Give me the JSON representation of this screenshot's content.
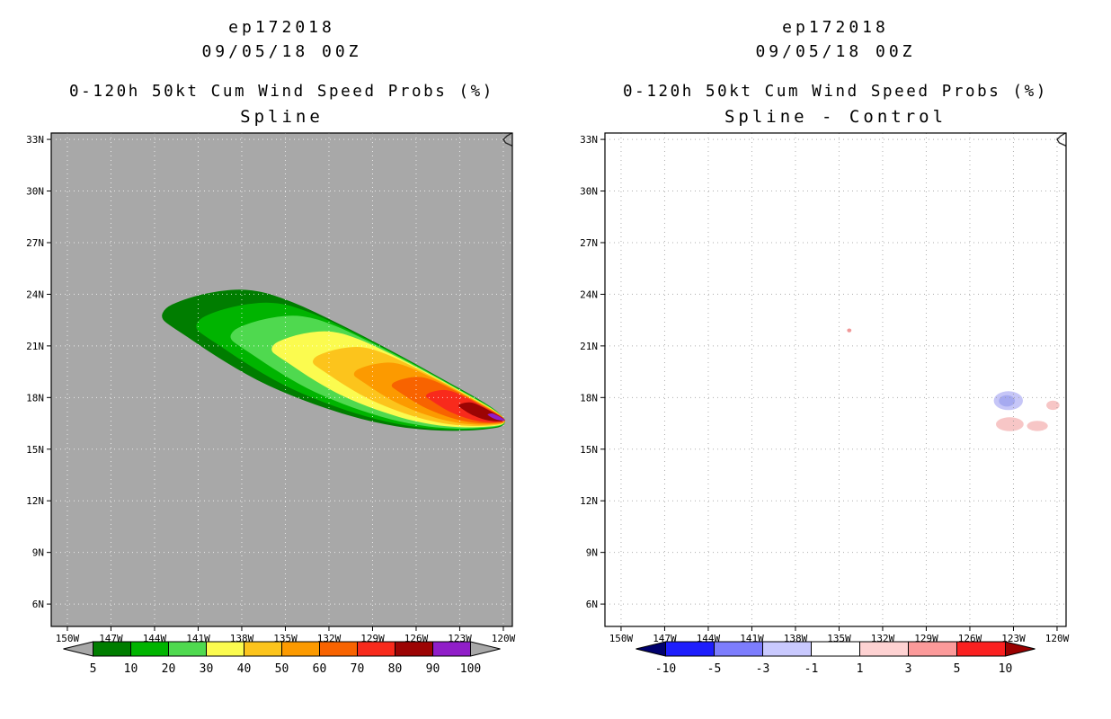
{
  "page": {
    "bg": "#ffffff"
  },
  "chart_data": [
    {
      "id": "spline",
      "type": "heatmap",
      "subtype": "filled_contour_map",
      "title_lines": [
        "ep172018",
        "09/05/18 00Z"
      ],
      "subtitle_lines": [
        "0-120h 50kt Cum Wind Speed Probs (%)",
        "Spline"
      ],
      "units": "%",
      "x_axis": {
        "range": [
          -151.11,
          -119.38
        ],
        "ticks": [
          -150,
          -147,
          -144,
          -141,
          -138,
          -135,
          -132,
          -129,
          -126,
          -123,
          -120
        ],
        "tick_labels": [
          "150W",
          "147W",
          "144W",
          "141W",
          "138W",
          "135W",
          "132W",
          "129W",
          "126W",
          "123W",
          "120W"
        ]
      },
      "y_axis": {
        "range": [
          4.7,
          33.37
        ],
        "ticks": [
          33,
          30,
          27,
          24,
          21,
          18,
          15,
          12,
          9,
          6
        ],
        "tick_labels": [
          "33N",
          "30N",
          "27N",
          "24N",
          "21N",
          "18N",
          "15N",
          "12N",
          "9N",
          "6N"
        ]
      },
      "plot_bg": "#a8a8a8",
      "grid_color": "#ffffff",
      "coastline": [
        [
          -119.42,
          33.37
        ],
        [
          -119.75,
          33.2
        ],
        [
          -120.0,
          33.0
        ],
        [
          -119.85,
          32.8
        ],
        [
          -119.38,
          32.62
        ]
      ],
      "contours": {
        "focus": [
          -119.9,
          16.7
        ],
        "levels": [
          5,
          10,
          20,
          30,
          40,
          50,
          60,
          70,
          80,
          90
        ],
        "scales": [
          1.0,
          0.9,
          0.8,
          0.68,
          0.56,
          0.44,
          0.33,
          0.23,
          0.135,
          0.05
        ],
        "colors": [
          "#007d00",
          "#00b400",
          "#4fd94f",
          "#fbfb4f",
          "#fcc41c",
          "#fc9a00",
          "#f86300",
          "#f82a1c",
          "#9c0404",
          "#901ec8"
        ],
        "base_polygon": [
          [
            -143.6,
            22.6
          ],
          [
            -143.3,
            23.2
          ],
          [
            -142.3,
            23.6
          ],
          [
            -141.0,
            23.95
          ],
          [
            -139.5,
            24.2
          ],
          [
            -138.0,
            24.3
          ],
          [
            -136.6,
            24.15
          ],
          [
            -135.3,
            23.8
          ],
          [
            -133.8,
            23.3
          ],
          [
            -132.2,
            22.65
          ],
          [
            -130.5,
            21.95
          ],
          [
            -128.8,
            21.2
          ],
          [
            -127.0,
            20.4
          ],
          [
            -125.3,
            19.6
          ],
          [
            -123.6,
            18.8
          ],
          [
            -122.2,
            18.15
          ],
          [
            -121.0,
            17.55
          ],
          [
            -120.2,
            17.05
          ],
          [
            -119.8,
            16.6
          ],
          [
            -120.1,
            16.3
          ],
          [
            -120.9,
            16.18
          ],
          [
            -122.0,
            16.1
          ],
          [
            -123.5,
            16.05
          ],
          [
            -125.0,
            16.1
          ],
          [
            -126.6,
            16.22
          ],
          [
            -128.2,
            16.45
          ],
          [
            -129.8,
            16.75
          ],
          [
            -131.4,
            17.15
          ],
          [
            -133.0,
            17.6
          ],
          [
            -134.6,
            18.12
          ],
          [
            -136.2,
            18.7
          ],
          [
            -137.7,
            19.35
          ],
          [
            -139.1,
            20.05
          ],
          [
            -140.5,
            20.8
          ],
          [
            -141.7,
            21.5
          ],
          [
            -142.8,
            22.1
          ]
        ]
      },
      "colorbar": {
        "labels": [
          "5",
          "10",
          "20",
          "30",
          "40",
          "50",
          "60",
          "70",
          "80",
          "90",
          "100"
        ],
        "cell_colors": [
          "#007d00",
          "#00b400",
          "#4fd94f",
          "#fbfb4f",
          "#fcc41c",
          "#fc9a00",
          "#f86300",
          "#f82a1c",
          "#9c0404",
          "#901ec8"
        ],
        "left_arrow_color": "#a8a8a8",
        "right_arrow_color": "#a8a8a8"
      }
    },
    {
      "id": "spline-minus-control",
      "type": "heatmap",
      "subtype": "difference_map",
      "title_lines": [
        "ep172018",
        "09/05/18 00Z"
      ],
      "subtitle_lines": [
        "0-120h 50kt Cum Wind Speed Probs (%)",
        "Spline - Control"
      ],
      "units": "%",
      "x_axis": {
        "range": [
          -151.11,
          -119.38
        ],
        "ticks": [
          -150,
          -147,
          -144,
          -141,
          -138,
          -135,
          -132,
          -129,
          -126,
          -123,
          -120
        ],
        "tick_labels": [
          "150W",
          "147W",
          "144W",
          "141W",
          "138W",
          "135W",
          "132W",
          "129W",
          "126W",
          "123W",
          "120W"
        ]
      },
      "y_axis": {
        "range": [
          4.7,
          33.37
        ],
        "ticks": [
          33,
          30,
          27,
          24,
          21,
          18,
          15,
          12,
          9,
          6
        ],
        "tick_labels": [
          "33N",
          "30N",
          "27N",
          "24N",
          "21N",
          "18N",
          "15N",
          "12N",
          "9N",
          "6N"
        ]
      },
      "plot_bg": "#ffffff",
      "grid_color": "#999999",
      "coastline": [
        [
          -119.42,
          33.37
        ],
        [
          -119.75,
          33.2
        ],
        [
          -120.0,
          33.0
        ],
        [
          -119.85,
          32.8
        ],
        [
          -119.38,
          32.62
        ]
      ],
      "patches": [
        {
          "lon": -123.35,
          "lat": 17.82,
          "rx": 1.0,
          "ry": 0.55,
          "color": "#c6c6f7"
        },
        {
          "lon": -123.45,
          "lat": 17.8,
          "rx": 0.55,
          "ry": 0.33,
          "color": "#a6aaf0"
        },
        {
          "lon": -123.25,
          "lat": 16.45,
          "rx": 0.95,
          "ry": 0.4,
          "color": "#f7c6c6"
        },
        {
          "lon": -121.35,
          "lat": 16.35,
          "rx": 0.72,
          "ry": 0.3,
          "color": "#f7c6c6"
        },
        {
          "lon": -120.28,
          "lat": 17.55,
          "rx": 0.45,
          "ry": 0.27,
          "color": "#f7c6c6"
        },
        {
          "lon": -134.3,
          "lat": 21.9,
          "rx": 0.15,
          "ry": 0.11,
          "color": "#f09898"
        }
      ],
      "colorbar": {
        "labels": [
          "-10",
          "-5",
          "-3",
          "-1",
          "1",
          "3",
          "5",
          "10"
        ],
        "cell_colors": [
          "#1e1efc",
          "#7d7dfd",
          "#c9c9fe",
          "#ffffff",
          "#fed2d2",
          "#fc9a9a",
          "#fa2020"
        ],
        "left_arrow_color": "#00006e",
        "right_arrow_color": "#9a0000"
      }
    }
  ]
}
